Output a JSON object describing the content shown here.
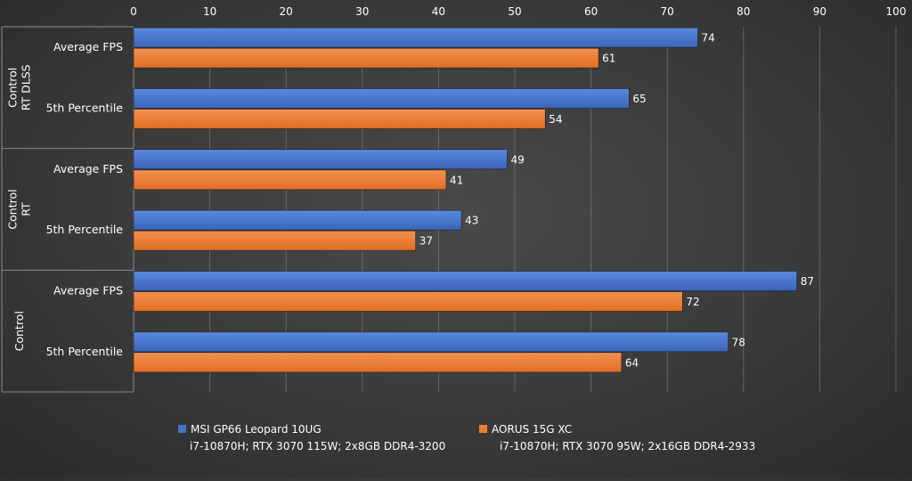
{
  "chart_data": {
    "type": "bar",
    "orientation": "horizontal",
    "xlim": [
      0,
      100
    ],
    "ticks": [
      0,
      10,
      20,
      30,
      40,
      50,
      60,
      70,
      80,
      90,
      100
    ],
    "axis_position": "top",
    "grid": true,
    "legend_position": "bottom",
    "series": [
      {
        "name": "MSI GP66 Leopard 10UG",
        "subtitle": "i7-10870H; RTX 3070 115W; 2x8GB DDR4-3200",
        "color": "#4472C4",
        "values": [
          74,
          65,
          49,
          43,
          87,
          78
        ]
      },
      {
        "name": "AORUS 15G XC",
        "subtitle": "i7-10870H; RTX 3070 95W; 2x16GB DDR4-2933",
        "color": "#ED7D31",
        "values": [
          61,
          54,
          41,
          37,
          72,
          64
        ]
      }
    ],
    "groups": [
      {
        "label_lines": [
          "Control",
          "RT DLSS"
        ],
        "categories": [
          "Average FPS",
          "5th Percentile"
        ]
      },
      {
        "label_lines": [
          "Control",
          "RT"
        ],
        "categories": [
          "Average FPS",
          "5th Percentile"
        ]
      },
      {
        "label_lines": [
          "Control"
        ],
        "categories": [
          "Average FPS",
          "5th Percentile"
        ]
      }
    ]
  }
}
